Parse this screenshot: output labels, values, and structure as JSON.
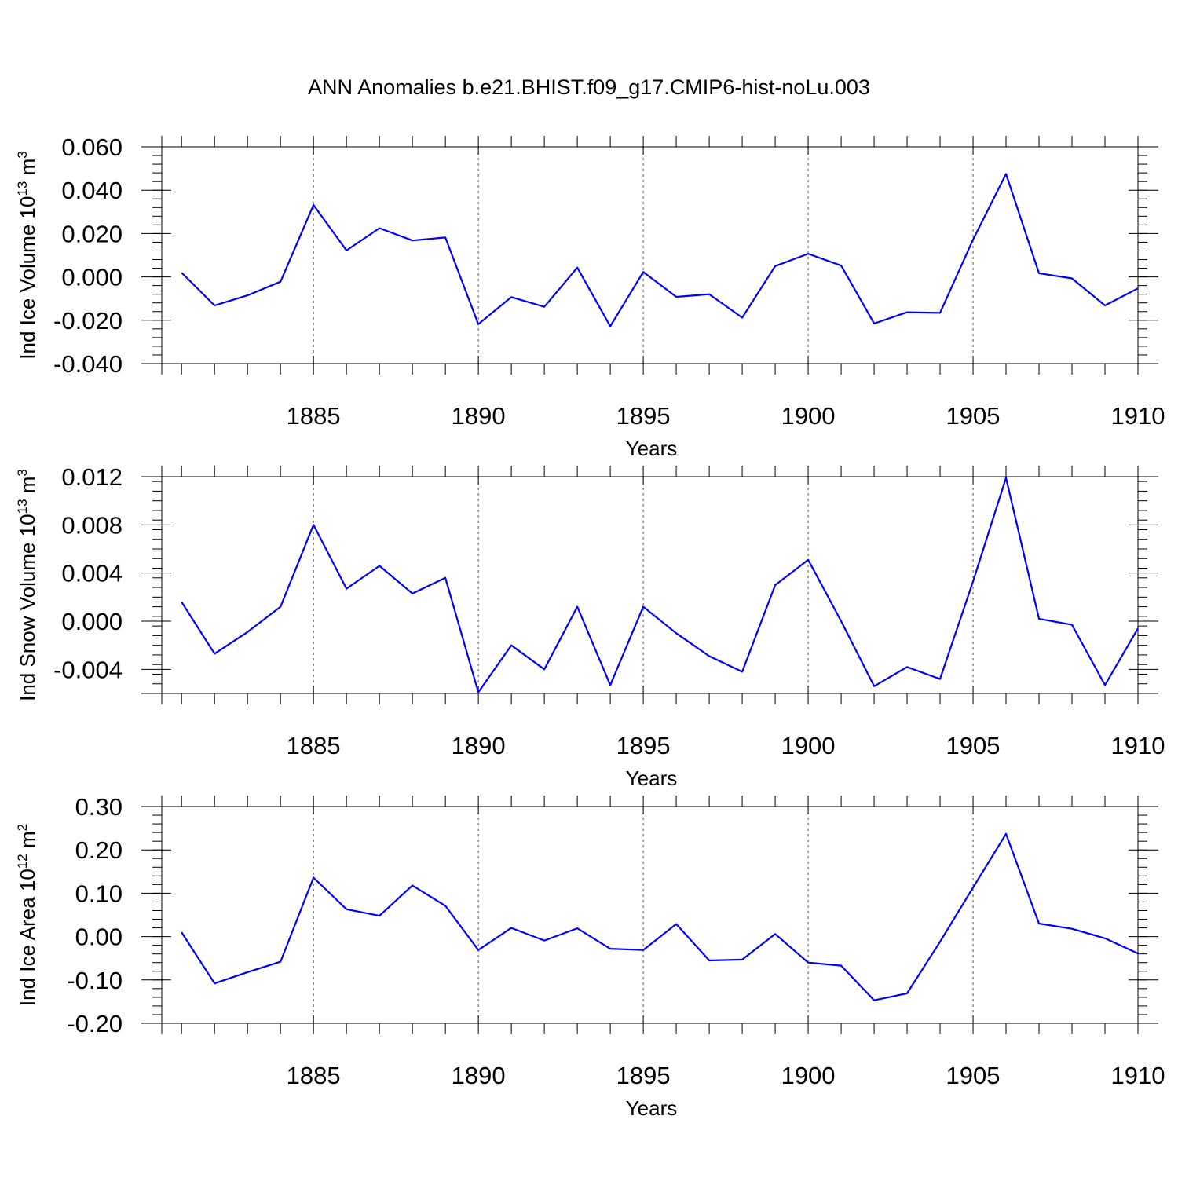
{
  "title": "ANN Anomalies b.e21.BHIST.f09_g17.CMIP6-hist-noLu.003",
  "colors": {
    "line": "#0000ff",
    "axis": "#000000",
    "grid": "#555555"
  },
  "chart_data": [
    {
      "type": "line",
      "ylabel": "Ind Ice Volume 10",
      "ylabel_exponent": "13",
      "ylabel_unit": " m",
      "ylabel_unit_exponent": "3",
      "xlabel": "Years",
      "xlim": [
        1880.4,
        1910
      ],
      "ylim": [
        -0.04,
        0.06
      ],
      "yticks": [
        -0.04,
        -0.02,
        0.0,
        0.02,
        0.04,
        0.06
      ],
      "ytick_labels": [
        "-0.040",
        "-0.020",
        "0.000",
        "0.020",
        "0.040",
        "0.060"
      ],
      "xticks": [
        1885,
        1890,
        1895,
        1900,
        1905,
        1910
      ],
      "xtick_labels": [
        "1885",
        "1890",
        "1895",
        "1900",
        "1905",
        "1910"
      ],
      "x": [
        1881,
        1882,
        1883,
        1884,
        1885,
        1886,
        1887,
        1888,
        1889,
        1890,
        1891,
        1892,
        1893,
        1894,
        1895,
        1896,
        1897,
        1898,
        1899,
        1900,
        1901,
        1902,
        1903,
        1904,
        1905,
        1906,
        1907,
        1908,
        1909,
        1910
      ],
      "series": [
        {
          "name": "Ind Ice Volume",
          "values": [
            0.002,
            -0.0132,
            -0.0085,
            -0.0022,
            0.0332,
            0.0122,
            0.0225,
            0.0168,
            0.0182,
            -0.0218,
            -0.0093,
            -0.0138,
            0.0043,
            -0.0228,
            0.0023,
            -0.0092,
            -0.008,
            -0.0188,
            0.005,
            0.0107,
            0.0052,
            -0.0215,
            -0.0163,
            -0.0166,
            0.0172,
            0.0475,
            0.0017,
            -0.0007,
            -0.0132,
            -0.0053
          ]
        }
      ]
    },
    {
      "type": "line",
      "ylabel": "Ind Snow Volume 10",
      "ylabel_exponent": "13",
      "ylabel_unit": " m",
      "ylabel_unit_exponent": "3",
      "xlabel": "Years",
      "xlim": [
        1880.4,
        1910
      ],
      "ylim": [
        -0.006,
        0.012
      ],
      "yticks": [
        -0.004,
        0.0,
        0.004,
        0.008,
        0.012
      ],
      "ytick_labels": [
        "-0.004",
        "0.000",
        "0.004",
        "0.008",
        "0.012"
      ],
      "xticks": [
        1885,
        1890,
        1895,
        1900,
        1905,
        1910
      ],
      "xtick_labels": [
        "1885",
        "1890",
        "1895",
        "1900",
        "1905",
        "1910"
      ],
      "x": [
        1881,
        1882,
        1883,
        1884,
        1885,
        1886,
        1887,
        1888,
        1889,
        1890,
        1891,
        1892,
        1893,
        1894,
        1895,
        1896,
        1897,
        1898,
        1899,
        1900,
        1901,
        1902,
        1903,
        1904,
        1905,
        1906,
        1907,
        1908,
        1909,
        1910
      ],
      "series": [
        {
          "name": "Ind Snow Volume",
          "values": [
            0.0016,
            -0.0027,
            -0.0009,
            0.0012,
            0.008,
            0.0027,
            0.0046,
            0.0023,
            0.0036,
            -0.0059,
            -0.002,
            -0.004,
            0.0012,
            -0.0053,
            0.0012,
            -0.001,
            -0.0029,
            -0.0042,
            0.003,
            0.0051,
            0.0,
            -0.0054,
            -0.0038,
            -0.0048,
            0.0033,
            0.0119,
            0.0002,
            -0.0003,
            -0.0053,
            -0.0006
          ]
        }
      ]
    },
    {
      "type": "line",
      "ylabel": "Ind Ice Area 10",
      "ylabel_exponent": "12",
      "ylabel_unit": " m",
      "ylabel_unit_exponent": "2",
      "xlabel": "Years",
      "xlim": [
        1880.4,
        1910
      ],
      "ylim": [
        -0.2,
        0.3
      ],
      "yticks": [
        -0.2,
        -0.1,
        0.0,
        0.1,
        0.2,
        0.3
      ],
      "ytick_labels": [
        "-0.20",
        "-0.10",
        "0.00",
        "0.10",
        "0.20",
        "0.30"
      ],
      "xticks": [
        1885,
        1890,
        1895,
        1900,
        1905,
        1910
      ],
      "xtick_labels": [
        "1885",
        "1890",
        "1895",
        "1900",
        "1905",
        "1910"
      ],
      "x": [
        1881,
        1882,
        1883,
        1884,
        1885,
        1886,
        1887,
        1888,
        1889,
        1890,
        1891,
        1892,
        1893,
        1894,
        1895,
        1896,
        1897,
        1898,
        1899,
        1900,
        1901,
        1902,
        1903,
        1904,
        1905,
        1906,
        1907,
        1908,
        1909,
        1910
      ],
      "series": [
        {
          "name": "Ind Ice Area",
          "values": [
            0.01,
            -0.108,
            -0.082,
            -0.058,
            0.136,
            0.063,
            0.048,
            0.118,
            0.071,
            -0.031,
            0.02,
            -0.009,
            0.019,
            -0.028,
            -0.031,
            0.029,
            -0.055,
            -0.053,
            0.006,
            -0.06,
            -0.067,
            -0.147,
            -0.131,
            -0.012,
            0.113,
            0.237,
            0.03,
            0.018,
            -0.004,
            -0.039
          ]
        }
      ]
    }
  ]
}
